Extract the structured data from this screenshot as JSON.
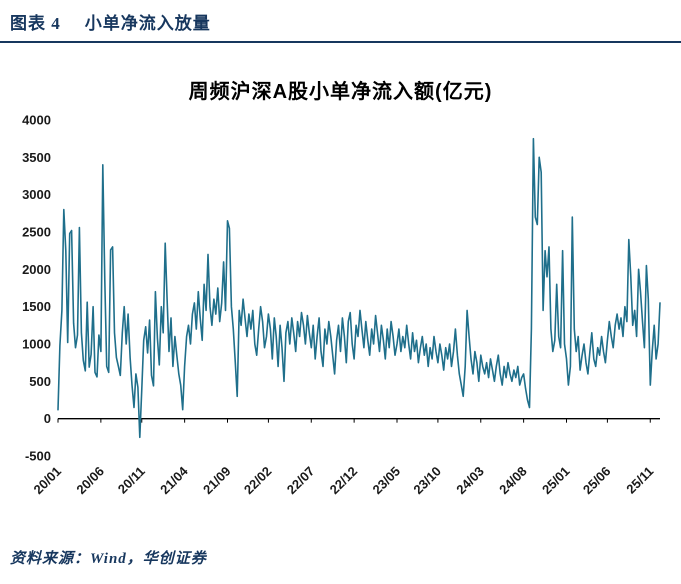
{
  "header": {
    "label": "图表 4",
    "title": "小单净流入放量"
  },
  "footer": {
    "source": "资料来源：Wind，华创证券"
  },
  "colors": {
    "accent": "#17375E",
    "line": "#1F6F8B"
  },
  "chart_data": {
    "type": "line",
    "title": "周频沪深A股小单净流入额(亿元)",
    "ylabel": "",
    "xlabel": "",
    "ylim": [
      -500,
      4000
    ],
    "grid": false,
    "legend": "none",
    "y_ticks": [
      4000,
      3500,
      3000,
      2500,
      2000,
      1500,
      1000,
      500,
      0,
      -500
    ],
    "x_tick_labels": [
      "20/01",
      "20/06",
      "20/11",
      "21/04",
      "21/09",
      "22/02",
      "22/07",
      "22/12",
      "23/05",
      "23/10",
      "24/03",
      "24/08",
      "25/01",
      "25/06",
      "25/11"
    ],
    "x_tick_indices": [
      0,
      22,
      43,
      65,
      87,
      108,
      130,
      152,
      174,
      195,
      217,
      239,
      261,
      282,
      304
    ],
    "line_color": "#1F6F8B",
    "values": [
      120,
      980,
      1450,
      2800,
      2250,
      1020,
      2480,
      2520,
      1280,
      950,
      1120,
      2560,
      1150,
      780,
      640,
      1560,
      690,
      860,
      1500,
      620,
      560,
      1120,
      900,
      3400,
      1850,
      700,
      620,
      2260,
      2300,
      1150,
      820,
      700,
      580,
      1150,
      1500,
      1000,
      1400,
      820,
      450,
      150,
      600,
      420,
      -250,
      400,
      1050,
      1230,
      880,
      1320,
      580,
      440,
      1700,
      1080,
      720,
      1500,
      1150,
      2350,
      1600,
      900,
      1350,
      700,
      1100,
      850,
      600,
      450,
      120,
      700,
      1100,
      1250,
      1000,
      1400,
      1550,
      1200,
      1700,
      1350,
      1050,
      1800,
      1450,
      2200,
      1500,
      1250,
      1600,
      1400,
      1750,
      1300,
      1550,
      2100,
      1450,
      2650,
      2550,
      1500,
      1200,
      750,
      300,
      1450,
      1250,
      1600,
      1350,
      1100,
      1400,
      1200,
      1450,
      1000,
      850,
      1200,
      1500,
      1300,
      950,
      1100,
      1400,
      1200,
      800,
      1350,
      1100,
      700,
      1250,
      950,
      500,
      1150,
      1300,
      1000,
      1350,
      1150,
      900,
      1300,
      1100,
      1420,
      1250,
      1000,
      1380,
      1150,
      950,
      1250,
      800,
      1100,
      1350,
      900,
      700,
      1200,
      1000,
      1300,
      1100,
      850,
      600,
      1050,
      1250,
      900,
      1350,
      1100,
      750,
      1300,
      1420,
      1000,
      800,
      1250,
      1100,
      1450,
      1200,
      950,
      1300,
      1050,
      850,
      1200,
      1000,
      1380,
      1150,
      900,
      1250,
      1050,
      800,
      1200,
      950,
      1300,
      1100,
      850,
      1000,
      1200,
      900,
      1100,
      950,
      1250,
      1000,
      800,
      1150,
      900,
      1050,
      750,
      950,
      1100,
      850,
      1000,
      700,
      950,
      800,
      1100,
      900,
      750,
      1000,
      850,
      650,
      950,
      800,
      1000,
      700,
      900,
      1200,
      850,
      600,
      450,
      300,
      700,
      1450,
      1100,
      800,
      600,
      900,
      750,
      500,
      850,
      700,
      600,
      750,
      550,
      800,
      650,
      500,
      700,
      850,
      600,
      450,
      700,
      550,
      750,
      600,
      500,
      650,
      550,
      700,
      450,
      550,
      600,
      400,
      250,
      150,
      1200,
      3750,
      2700,
      2600,
      3500,
      3300,
      1450,
      2250,
      1900,
      2300,
      1200,
      900,
      1050,
      1800,
      1100,
      950,
      2250,
      1000,
      800,
      450,
      700,
      2700,
      1200,
      900,
      1100,
      650,
      850,
      1000,
      750,
      600,
      900,
      1150,
      800,
      700,
      950,
      850,
      1100,
      900,
      750,
      1050,
      1300,
      1100,
      950,
      1250,
      1400,
      1200,
      1350,
      1100,
      1500,
      1300,
      2400,
      1900,
      1250,
      1450,
      1100,
      2000,
      1700,
      1300,
      950,
      2050,
      1600,
      450,
      900,
      1250,
      800,
      1000,
      1550
    ]
  }
}
